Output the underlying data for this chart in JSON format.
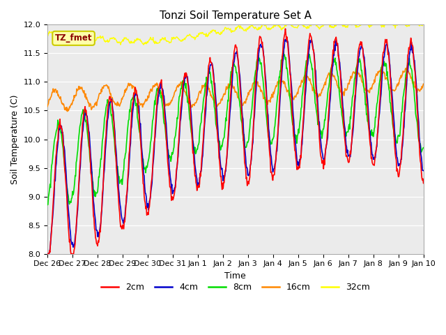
{
  "title": "Tonzi Soil Temperature Set A",
  "xlabel": "Time",
  "ylabel": "Soil Temperature (C)",
  "ylim": [
    8.0,
    12.0
  ],
  "annotation_text": "TZ_fmet",
  "bg_color": "#ebebeb",
  "legend_labels": [
    "2cm",
    "4cm",
    "8cm",
    "16cm",
    "32cm"
  ],
  "line_colors": {
    "2cm": "#ff0000",
    "4cm": "#0000cc",
    "8cm": "#00dd00",
    "16cm": "#ff8800",
    "32cm": "#ffff00"
  },
  "xtick_labels": [
    "Dec 26",
    "Dec 27",
    "Dec 28",
    "Dec 29",
    "Dec 30",
    "Dec 31",
    "Jan 1",
    "Jan 2",
    "Jan 3",
    "Jan 4",
    "Jan 5",
    "Jan 6",
    "Jan 7",
    "Jan 8",
    "Jan 9",
    "Jan 10"
  ],
  "n_days": 15
}
